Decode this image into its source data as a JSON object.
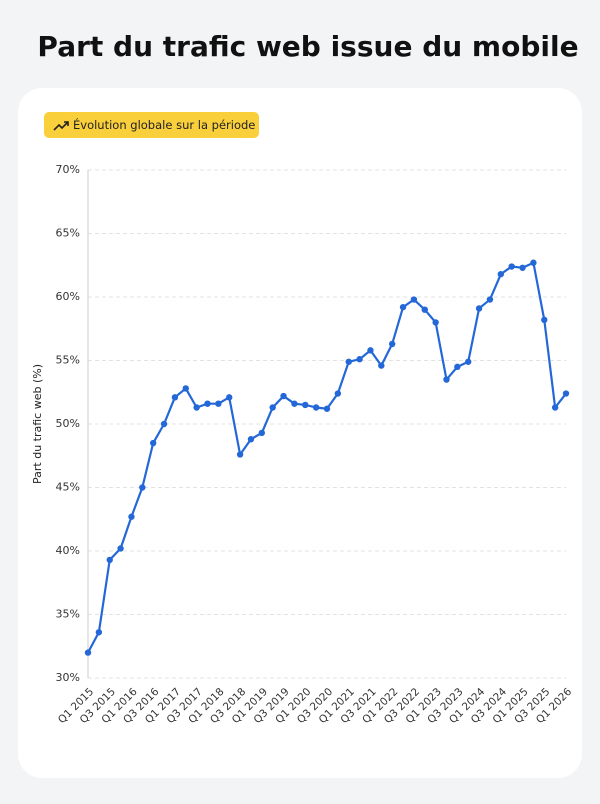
{
  "chart_data": {
    "type": "line",
    "title": "Part du trafic web issue du mobile",
    "badge": "Évolution globale sur la période",
    "y_label": "Part du trafic web (%)",
    "categories": [
      "Q1 2015",
      null,
      "Q3 2015",
      null,
      "Q1 2016",
      null,
      "Q3 2016",
      null,
      "Q1 2017",
      null,
      "Q3 2017",
      null,
      "Q1 2018",
      null,
      "Q3 2018",
      null,
      "Q1 2019",
      null,
      "Q3 2019",
      null,
      "Q1 2020",
      null,
      "Q3 2020",
      null,
      "Q1 2021",
      null,
      "Q3 2021",
      null,
      "Q1 2022",
      null,
      "Q3 2022",
      null,
      "Q1 2023",
      null,
      "Q3 2023",
      null,
      "Q1 2024",
      null,
      "Q3 2024",
      null,
      "Q1 2025",
      null,
      "Q3 2025",
      null,
      "Q1 2026"
    ],
    "values": [
      32.0,
      33.6,
      39.3,
      40.2,
      42.7,
      45.0,
      48.5,
      50.0,
      52.1,
      52.8,
      51.3,
      51.6,
      51.6,
      52.1,
      47.6,
      48.8,
      49.3,
      51.3,
      52.2,
      51.6,
      51.5,
      51.3,
      51.2,
      52.4,
      54.9,
      55.1,
      55.8,
      54.6,
      56.3,
      59.2,
      59.8,
      59.0,
      58.0,
      53.5,
      54.5,
      54.9,
      59.1,
      59.8,
      61.8,
      62.4,
      62.3,
      62.7,
      58.2,
      51.3,
      52.4
    ],
    "color": "#2468d8",
    "ylim": [
      30,
      70
    ],
    "yticks": [
      {
        "value": 30,
        "label": "30%"
      },
      {
        "value": 35,
        "label": "35%"
      },
      {
        "value": 40,
        "label": "40%"
      },
      {
        "value": 45,
        "label": "45%"
      },
      {
        "value": 50,
        "label": "50%"
      },
      {
        "value": 55,
        "label": "55%"
      },
      {
        "value": 60,
        "label": "60%"
      },
      {
        "value": 65,
        "label": "65%"
      },
      {
        "value": 70,
        "label": "70%"
      }
    ],
    "grid": true
  }
}
